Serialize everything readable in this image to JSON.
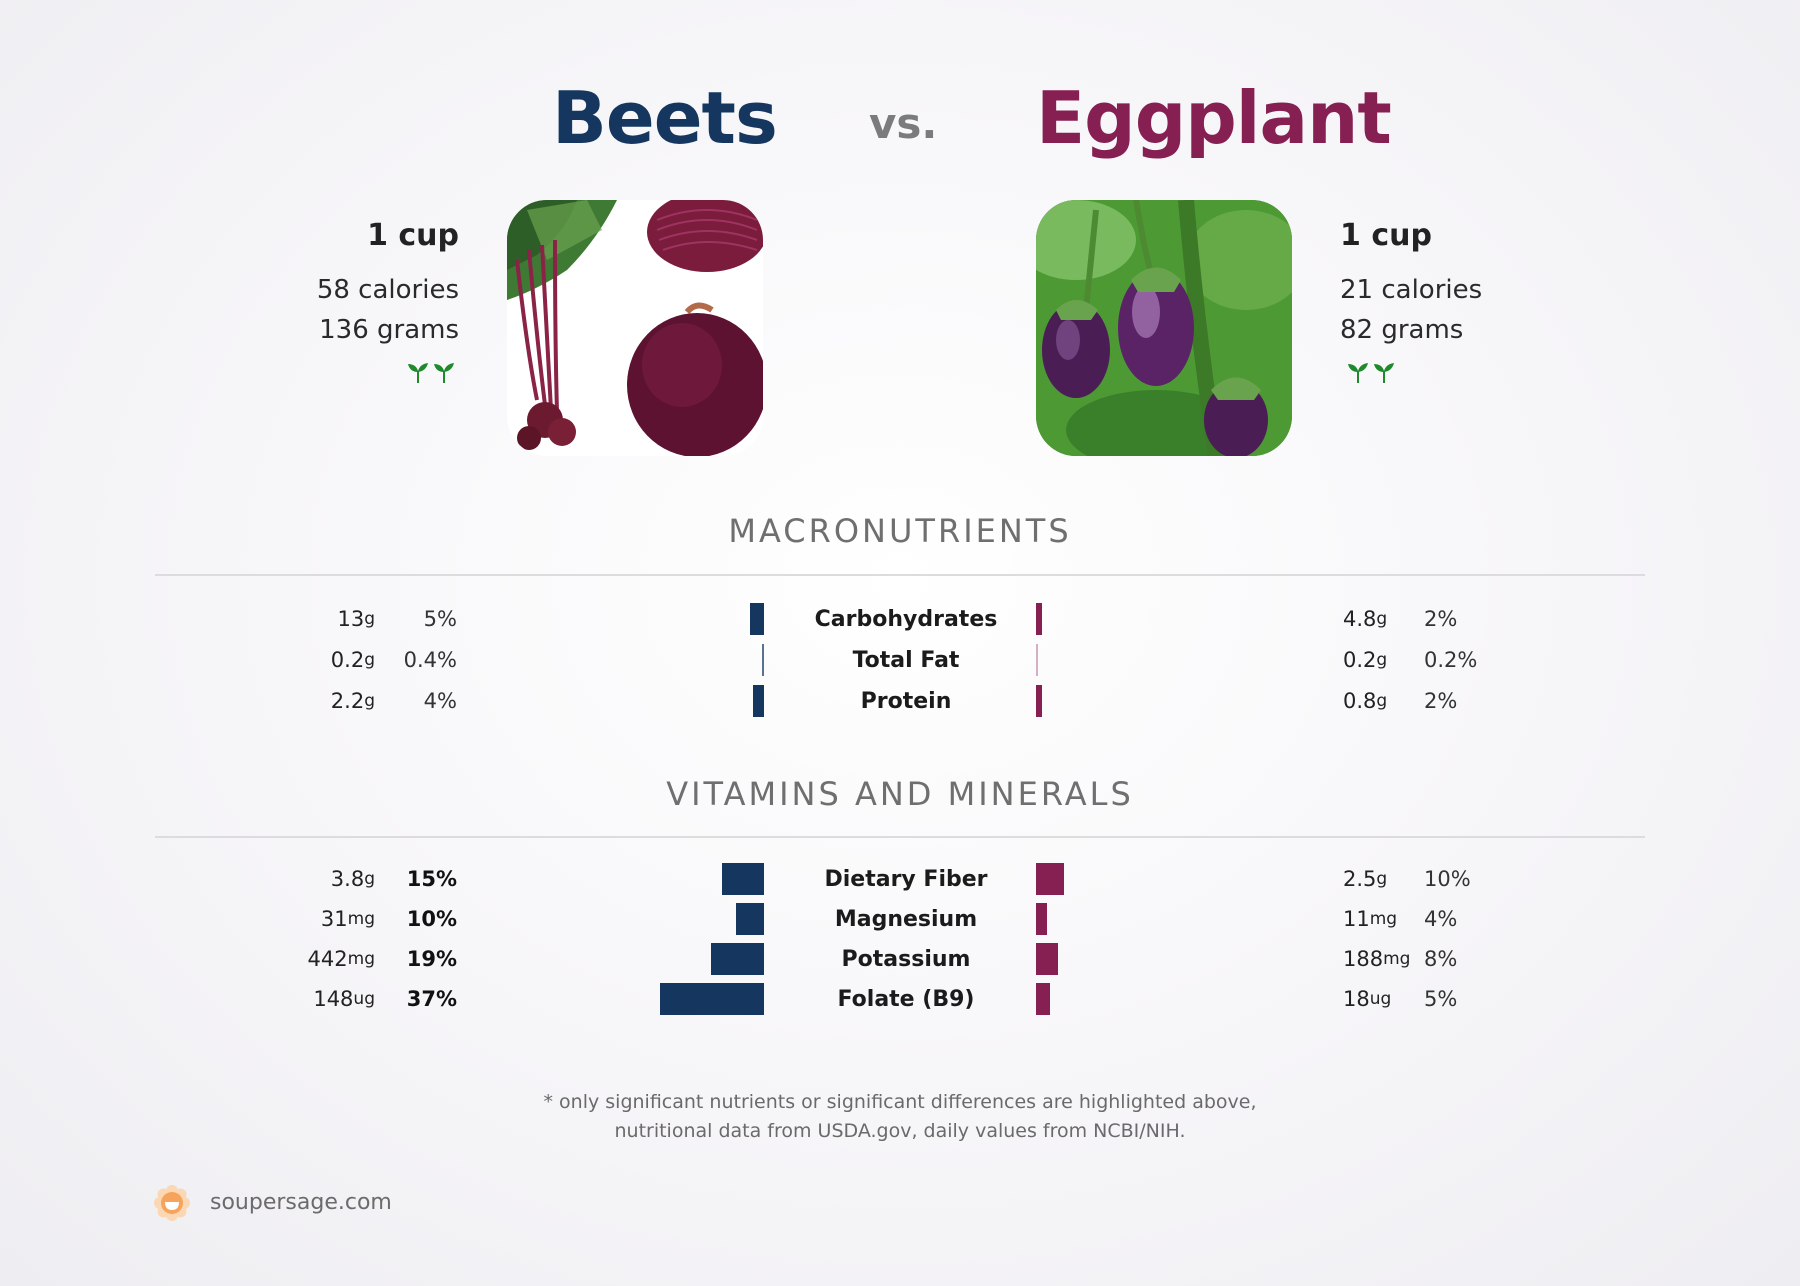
{
  "header": {
    "left_title": "Beets",
    "vs_label": "vs.",
    "right_title": "Eggplant"
  },
  "left_food": {
    "serving": "1 cup",
    "calories": "58 calories",
    "grams": "136 grams",
    "badge_icon": "sprout-icon",
    "photo_icon": "beet-photo"
  },
  "right_food": {
    "serving": "1 cup",
    "calories": "21 calories",
    "grams": "82 grams",
    "badge_icon": "sprout-icon",
    "photo_icon": "eggplant-photo"
  },
  "sections": {
    "macros_title": "MACRONUTRIENTS",
    "vitamins_title": "VITAMINS AND MINERALS"
  },
  "colors": {
    "left": "#15365f",
    "right": "#861f52",
    "sprout": "#1e8a2c"
  },
  "chart_data": [
    {
      "type": "bar",
      "title": "MACRONUTRIENTS",
      "categories": [
        "Carbohydrates",
        "Total Fat",
        "Protein"
      ],
      "series": [
        {
          "name": "Beets",
          "amounts": [
            "13",
            "0.2",
            "2.2"
          ],
          "units": [
            "g",
            "g",
            "g"
          ],
          "percent_labels": [
            "5%",
            "0.4%",
            "4%"
          ],
          "values": [
            5,
            0.4,
            4
          ]
        },
        {
          "name": "Eggplant",
          "amounts": [
            "4.8",
            "0.2",
            "0.8"
          ],
          "units": [
            "g",
            "g",
            "g"
          ],
          "percent_labels": [
            "2%",
            "0.2%",
            "2%"
          ],
          "values": [
            2,
            0.2,
            2
          ]
        }
      ]
    },
    {
      "type": "bar",
      "title": "VITAMINS AND MINERALS",
      "categories": [
        "Dietary Fiber",
        "Magnesium",
        "Potassium",
        "Folate (B9)"
      ],
      "series": [
        {
          "name": "Beets",
          "amounts": [
            "3.8",
            "31",
            "442",
            "148"
          ],
          "units": [
            "g",
            "mg",
            "mg",
            "ug"
          ],
          "percent_labels": [
            "15%",
            "10%",
            "19%",
            "37%"
          ],
          "values": [
            15,
            10,
            19,
            37
          ]
        },
        {
          "name": "Eggplant",
          "amounts": [
            "2.5",
            "11",
            "188",
            "18"
          ],
          "units": [
            "g",
            "mg",
            "mg",
            "ug"
          ],
          "percent_labels": [
            "10%",
            "4%",
            "8%",
            "5%"
          ],
          "values": [
            10,
            4,
            8,
            5
          ]
        }
      ]
    }
  ],
  "footer": {
    "note_line1": "* only significant nutrients or significant differences are highlighted above,",
    "note_line2": "nutritional data from USDA.gov, daily values from NCBI/NIH.",
    "brand": "soupersage.com",
    "brand_icon": "soupersage-logo-icon"
  }
}
